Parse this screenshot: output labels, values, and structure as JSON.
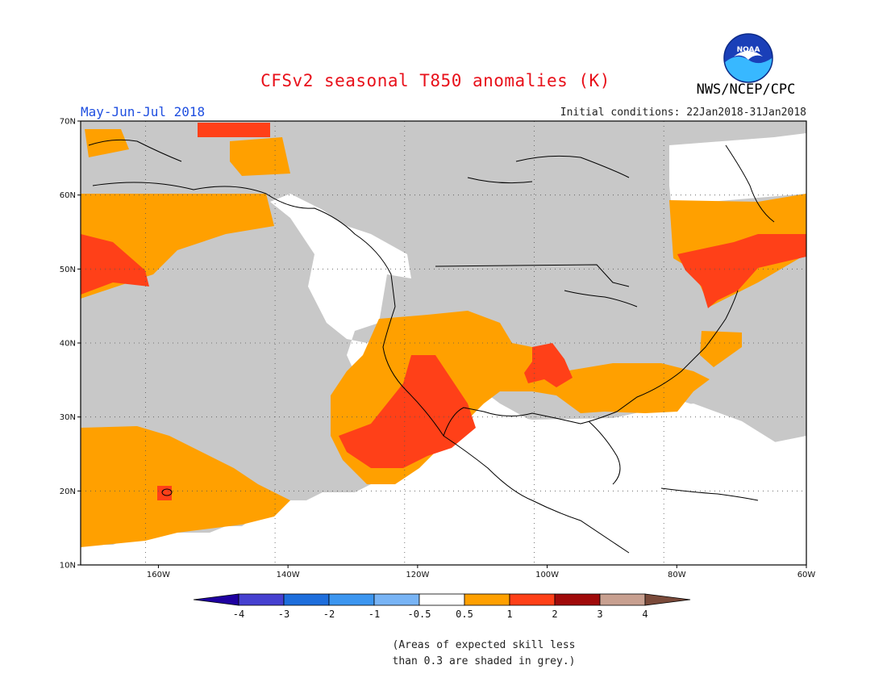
{
  "title": "CFSv2 seasonal T850 anomalies (K)",
  "season": "May-Jun-Jul 2018",
  "initial_conditions": "Initial conditions: 22Jan2018-31Jan2018",
  "agency": "NWS/NCEP/CPC",
  "logo_text": "NOAA",
  "map": {
    "lon_range": [
      -172,
      -60
    ],
    "lat_range": [
      10,
      70
    ],
    "lon_ticks": [
      {
        "value": -160,
        "label": "160W"
      },
      {
        "value": -140,
        "label": "140W"
      },
      {
        "value": -120,
        "label": "120W"
      },
      {
        "value": -100,
        "label": "100W"
      },
      {
        "value": -80,
        "label": "80W"
      },
      {
        "value": -60,
        "label": "60W"
      }
    ],
    "lat_ticks": [
      {
        "value": 10,
        "label": "10N"
      },
      {
        "value": 20,
        "label": "20N"
      },
      {
        "value": 30,
        "label": "30N"
      },
      {
        "value": 40,
        "label": "40N"
      },
      {
        "value": 50,
        "label": "50N"
      },
      {
        "value": 60,
        "label": "60N"
      },
      {
        "value": 70,
        "label": "70N"
      }
    ],
    "grid": true,
    "colors": {
      "skill_low_grey": "#c8c8c8",
      "neutral_white": "#ffffff",
      "band_0_5_to_1": "#ffa000",
      "band_1_to_2": "#ff4018",
      "coast": "#000000"
    }
  },
  "colorbar": {
    "levels": [
      "-4",
      "-3",
      "-2",
      "-1",
      "-0.5",
      "0.5",
      "1",
      "2",
      "3",
      "4"
    ],
    "colors": [
      "#1e00a0",
      "#4640d0",
      "#1e6edc",
      "#3c96f0",
      "#78b4f5",
      "#ffffff",
      "#ffa000",
      "#ff4018",
      "#a00a0a",
      "#c8a090",
      "#7a4a3a"
    ]
  },
  "note_line1": "(Areas of expected skill less",
  "note_line2": "than 0.3 are shaded in grey.)"
}
